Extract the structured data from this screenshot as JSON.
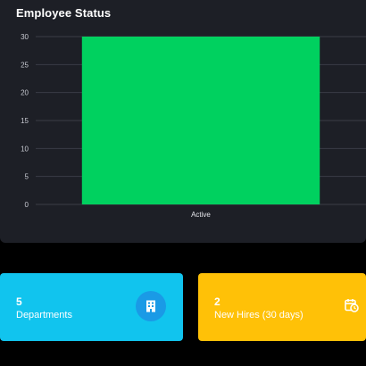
{
  "panel": {
    "title": "Employee Status"
  },
  "chart_data": {
    "type": "bar",
    "categories": [
      "Active"
    ],
    "values": [
      30
    ],
    "title": "",
    "xlabel": "",
    "ylabel": "",
    "ylim": [
      0,
      30
    ],
    "yticks": [
      "0",
      "5",
      "10",
      "15",
      "20",
      "25",
      "30"
    ],
    "grid": true,
    "bar_color": "#00d15f"
  },
  "cards": [
    {
      "value": "5",
      "label": "Departments",
      "color": "#11c4ee",
      "icon": "building-icon"
    },
    {
      "value": "2",
      "label": "New Hires (30 days)",
      "color": "#ffc107",
      "icon": "calendar-clock-icon"
    }
  ]
}
